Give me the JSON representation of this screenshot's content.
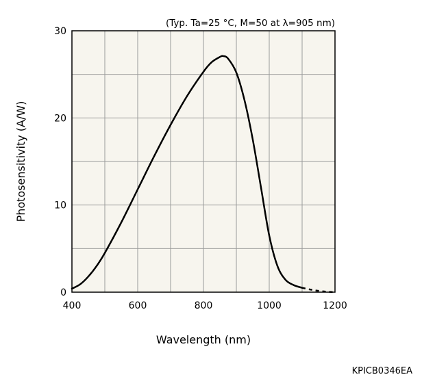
{
  "chart_data": {
    "type": "line",
    "title": "",
    "note": "(Typ. Ta=25 °C, M=50 at λ=905 nm)",
    "xlabel": "Wavelength (nm)",
    "ylabel": "Photosensitivity (A/W)",
    "xlim": [
      400,
      1200
    ],
    "ylim": [
      0,
      30
    ],
    "xticks": [
      400,
      600,
      800,
      1000,
      1200
    ],
    "yticks": [
      0,
      10,
      20,
      30
    ],
    "x_minor_step": 100,
    "y_minor_step": 5,
    "grid": true,
    "legend": "none",
    "series": [
      {
        "line_style": "solid",
        "x": [
          400,
          425,
          450,
          475,
          500,
          550,
          600,
          650,
          700,
          750,
          800,
          825,
          850,
          860,
          875,
          900,
          925,
          950,
          975,
          1000,
          1025,
          1050,
          1075,
          1100
        ],
        "y": [
          0.4,
          0.9,
          1.8,
          3.0,
          4.5,
          8.0,
          11.8,
          15.6,
          19.2,
          22.5,
          25.3,
          26.4,
          27.0,
          27.1,
          26.8,
          25.2,
          22.0,
          17.5,
          12.0,
          6.5,
          3.0,
          1.4,
          0.8,
          0.5
        ]
      },
      {
        "line_style": "dashed",
        "x": [
          1100,
          1125,
          1150,
          1175,
          1200
        ],
        "y": [
          0.5,
          0.3,
          0.15,
          0.05,
          0.0
        ]
      }
    ]
  },
  "figure_code": "KPICB0346EA",
  "colors": {
    "plot_background": "#f7f5ee",
    "grid_line": "#9a9a9a",
    "curve": "#000000"
  }
}
